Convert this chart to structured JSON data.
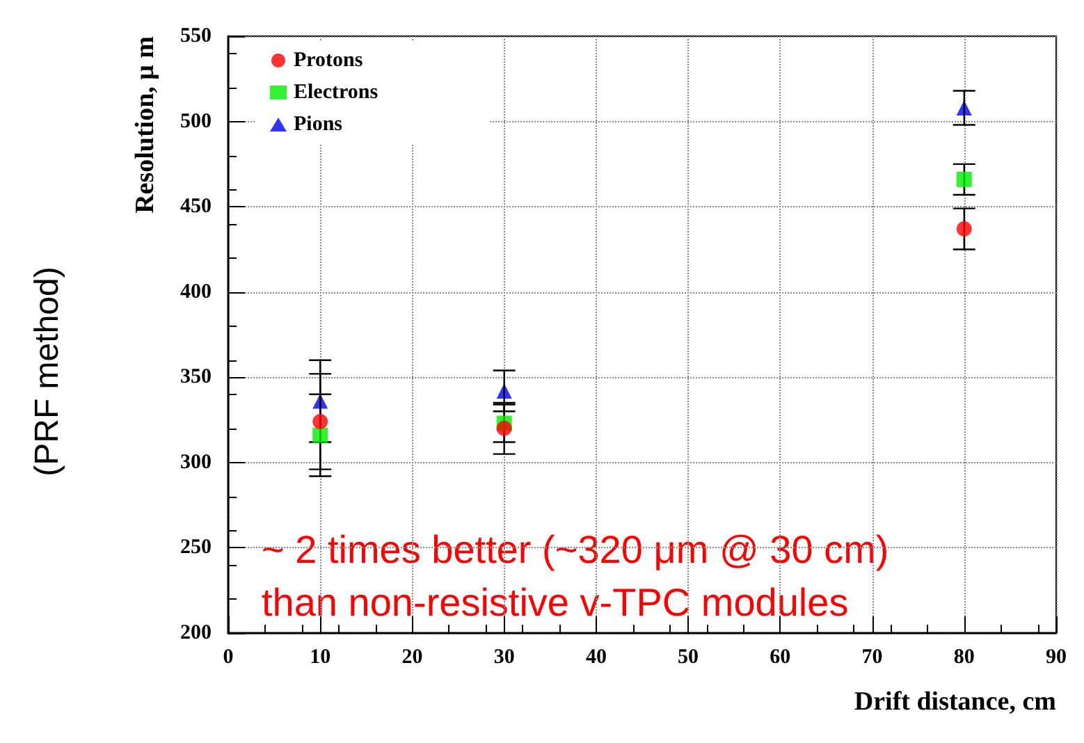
{
  "chart_data": {
    "type": "scatter",
    "xlabel": "Drift distance, cm",
    "ylabel": "Resolution, μ m",
    "x": [
      10,
      30,
      80
    ],
    "series": [
      {
        "name": "Protons",
        "color": "#ff0000",
        "marker": "circle",
        "values": [
          324,
          320,
          437
        ],
        "errors": [
          28,
          15,
          12
        ]
      },
      {
        "name": "Electrons",
        "color": "#00ee00",
        "marker": "square",
        "values": [
          316,
          323,
          466
        ],
        "errors": [
          24,
          11,
          9
        ]
      },
      {
        "name": "Pions",
        "color": "#0000ff",
        "marker": "triangle",
        "values": [
          336,
          342,
          508
        ],
        "errors": [
          24,
          12,
          10
        ]
      }
    ],
    "xlim": [
      0,
      90
    ],
    "xticks": [
      0,
      10,
      20,
      30,
      40,
      50,
      60,
      70,
      80,
      90
    ],
    "ylim": [
      200,
      550
    ],
    "yticks": [
      200,
      250,
      300,
      350,
      400,
      450,
      500,
      550
    ],
    "grid": true,
    "legend": "top left",
    "annotations": [
      "(PRF method)",
      "~ 2 times better (~320 μm @ 30 cm)\nthan non-resistive v-TPC modules"
    ]
  }
}
